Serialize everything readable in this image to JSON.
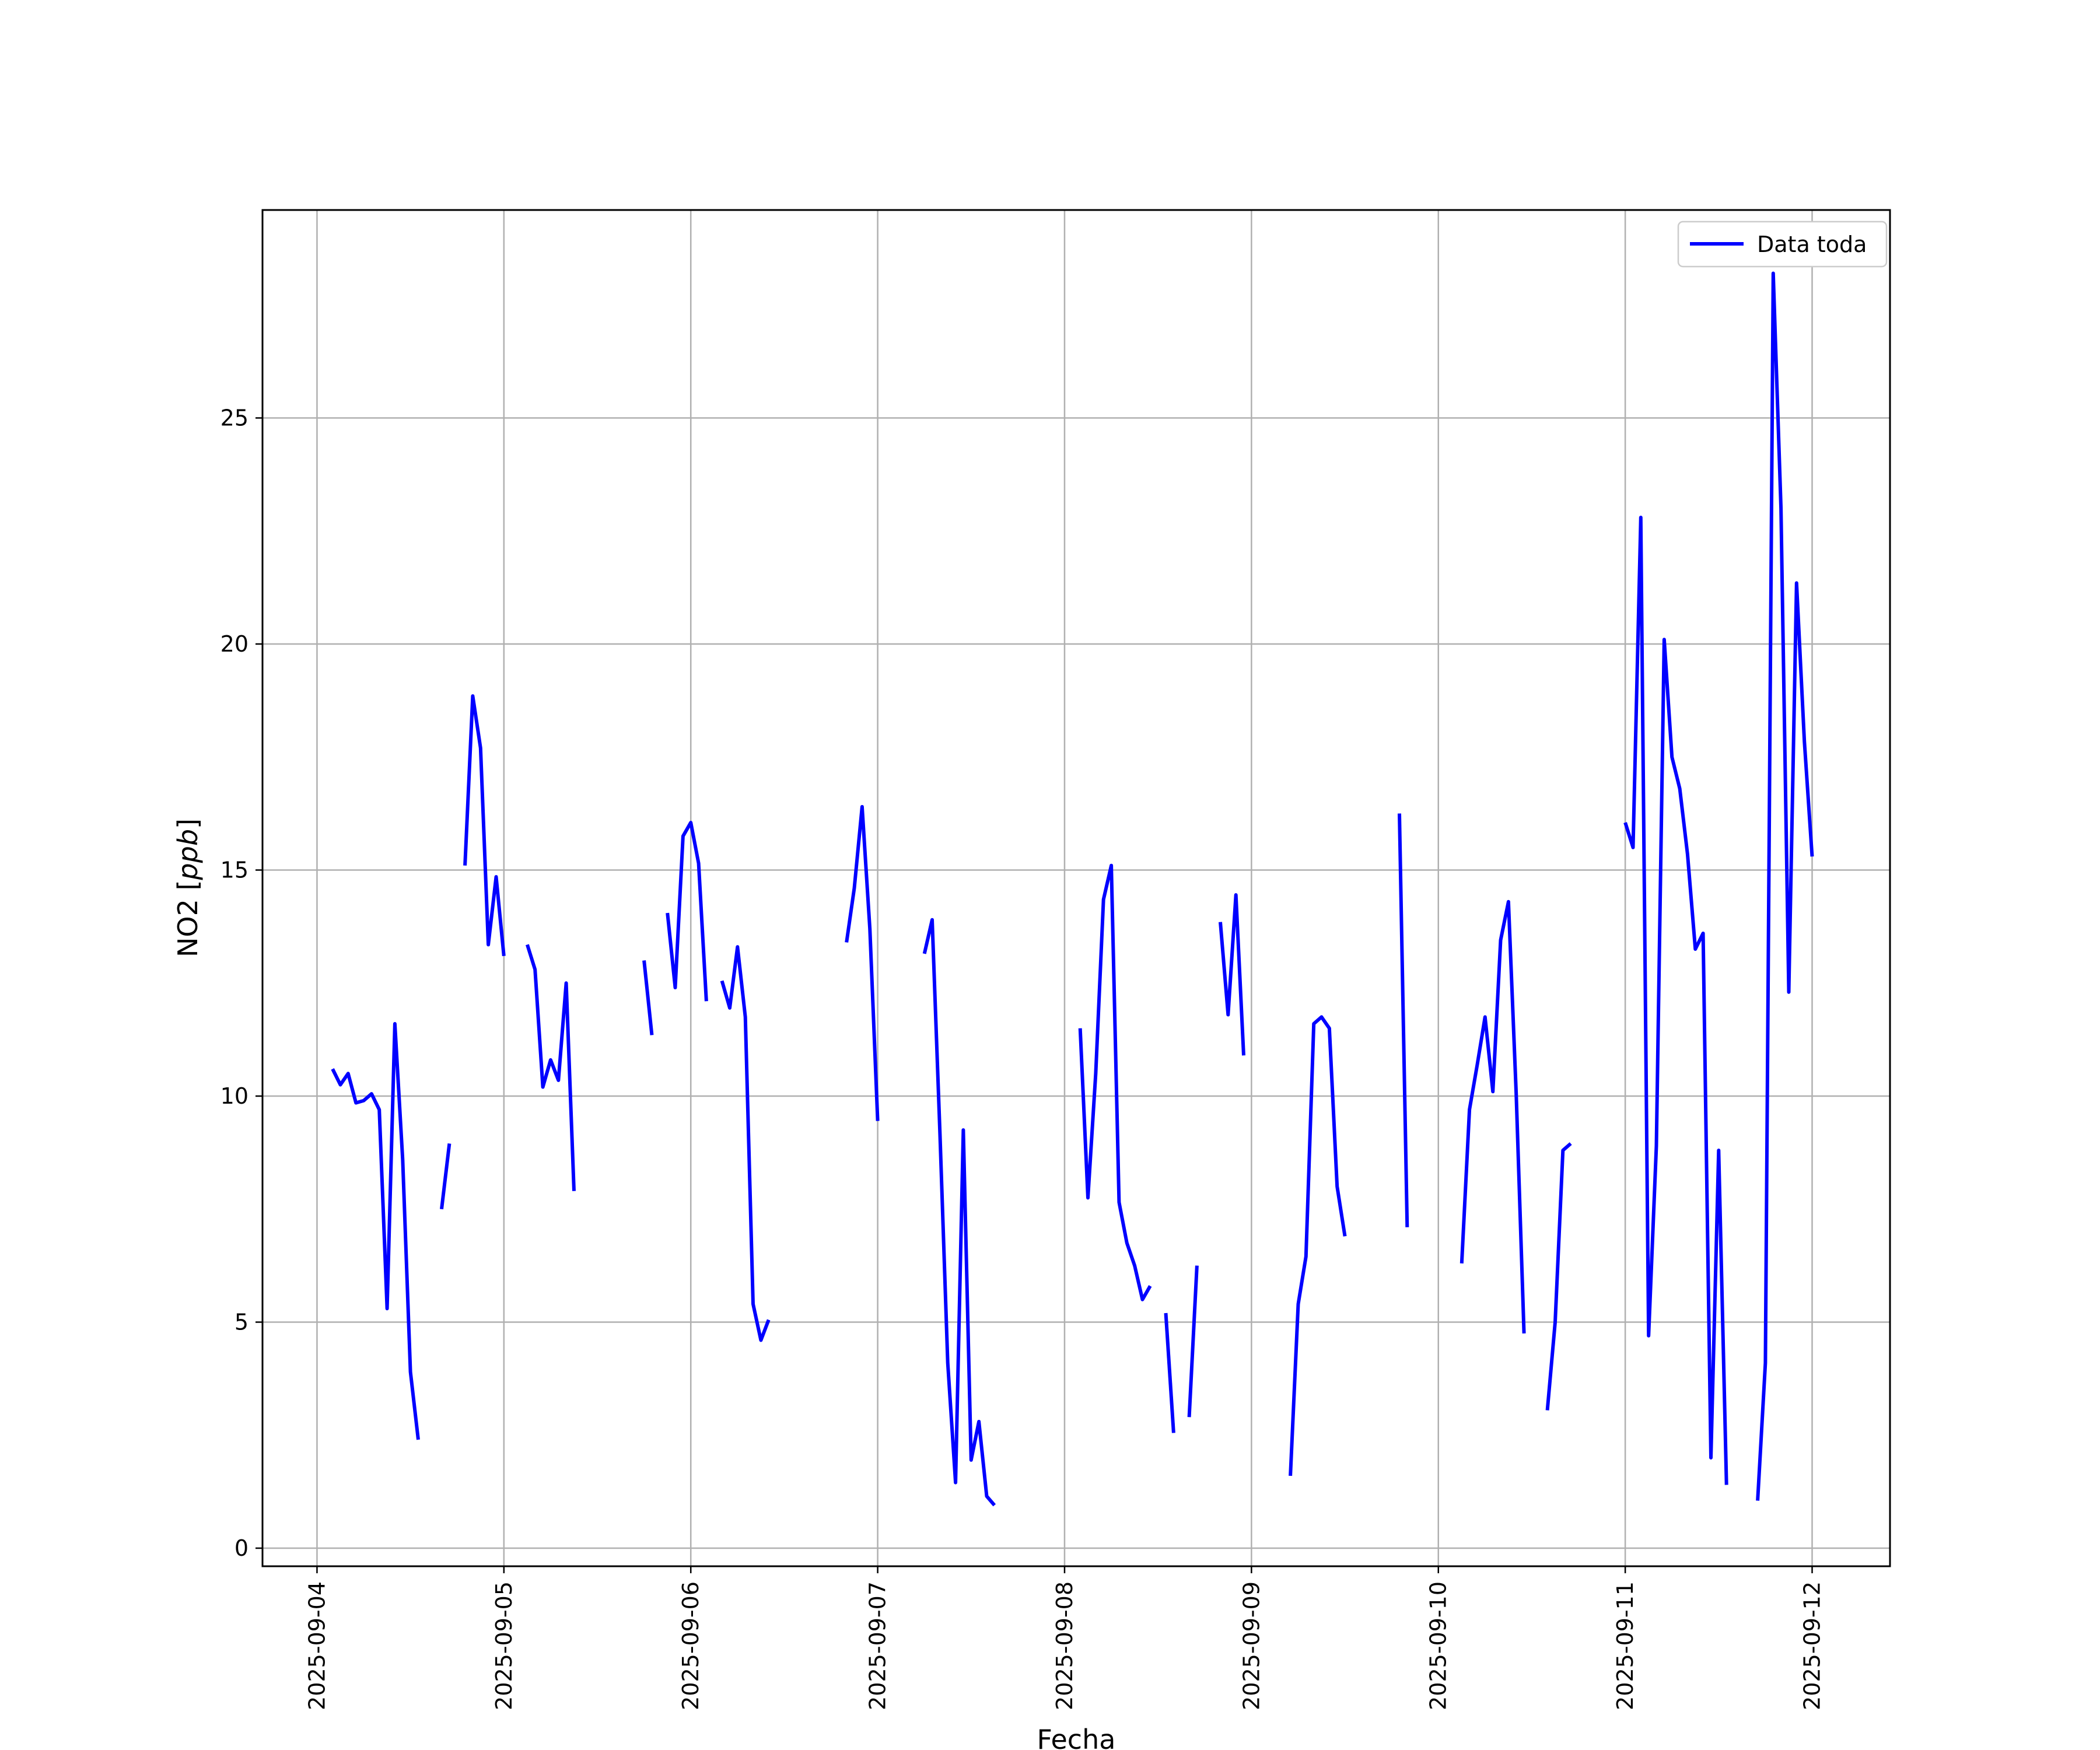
{
  "chart_data": {
    "type": "line",
    "xlabel": "Fecha",
    "ylabel": "NO2 [ppb]",
    "ylabel_parts": {
      "text": "NO2 [",
      "unit": "ppb",
      "close": "]"
    },
    "xlim": [
      "2025-09-03 17:00",
      "2025-09-12 10:00"
    ],
    "ylim": [
      -0.4,
      29.6
    ],
    "x_ticks": [
      "2025-09-04",
      "2025-09-05",
      "2025-09-06",
      "2025-09-07",
      "2025-09-08",
      "2025-09-09",
      "2025-09-10",
      "2025-09-11",
      "2025-09-12"
    ],
    "y_ticks": [
      0,
      5,
      10,
      15,
      20,
      25
    ],
    "y_tick_labels": [
      "0",
      "5",
      "10",
      "15",
      "20",
      "25"
    ],
    "grid": true,
    "legend": {
      "position": "top-right",
      "entries": [
        "Data toda"
      ]
    },
    "series": [
      {
        "name": "Data toda",
        "color": "#0000ff",
        "segments": [
          [
            [
              "2025-09-04 02:00",
              10.6
            ],
            [
              "2025-09-04 03:00",
              10.25
            ],
            [
              "2025-09-04 04:00",
              10.5
            ],
            [
              "2025-09-04 05:00",
              9.85
            ],
            [
              "2025-09-04 06:00",
              9.9
            ],
            [
              "2025-09-04 07:00",
              10.05
            ],
            [
              "2025-09-04 08:00",
              9.7
            ],
            [
              "2025-09-04 09:00",
              5.3
            ],
            [
              "2025-09-04 10:00",
              11.6
            ],
            [
              "2025-09-04 11:00",
              8.6
            ],
            [
              "2025-09-04 12:00",
              3.9
            ],
            [
              "2025-09-04 13:00",
              2.4
            ]
          ],
          [
            [
              "2025-09-04 16:00",
              7.5
            ],
            [
              "2025-09-04 17:00",
              8.95
            ]
          ],
          [
            [
              "2025-09-04 19:00",
              15.1
            ],
            [
              "2025-09-04 20:00",
              18.85
            ],
            [
              "2025-09-04 21:00",
              17.7
            ],
            [
              "2025-09-04 22:00",
              13.35
            ],
            [
              "2025-09-04 23:00",
              14.85
            ],
            [
              "2025-09-05 00:00",
              13.1
            ]
          ],
          [
            [
              "2025-09-05 03:00",
              13.35
            ],
            [
              "2025-09-05 04:00",
              12.8
            ],
            [
              "2025-09-05 05:00",
              10.2
            ],
            [
              "2025-09-05 06:00",
              10.8
            ],
            [
              "2025-09-05 07:00",
              10.35
            ],
            [
              "2025-09-05 08:00",
              12.5
            ],
            [
              "2025-09-05 09:00",
              7.9
            ]
          ],
          [
            [
              "2025-09-05 18:00",
              13.0
            ],
            [
              "2025-09-05 19:00",
              11.35
            ]
          ],
          [
            [
              "2025-09-05 21:00",
              14.05
            ],
            [
              "2025-09-05 22:00",
              12.4
            ],
            [
              "2025-09-05 23:00",
              15.75
            ],
            [
              "2025-09-06 00:00",
              16.05
            ],
            [
              "2025-09-06 01:00",
              15.15
            ],
            [
              "2025-09-06 02:00",
              12.1
            ]
          ],
          [
            [
              "2025-09-06 04:00",
              12.55
            ],
            [
              "2025-09-06 05:00",
              11.95
            ],
            [
              "2025-09-06 06:00",
              13.3
            ],
            [
              "2025-09-06 07:00",
              11.75
            ],
            [
              "2025-09-06 08:00",
              5.4
            ],
            [
              "2025-09-06 09:00",
              4.6
            ],
            [
              "2025-09-06 10:00",
              5.05
            ]
          ],
          [
            [
              "2025-09-06 20:00",
              13.4
            ],
            [
              "2025-09-06 21:00",
              14.6
            ],
            [
              "2025-09-06 22:00",
              16.4
            ],
            [
              "2025-09-06 23:00",
              13.7
            ],
            [
              "2025-09-07 00:00",
              9.45
            ]
          ],
          [
            [
              "2025-09-07 06:00",
              13.15
            ],
            [
              "2025-09-07 07:00",
              13.9
            ],
            [
              "2025-09-07 08:00",
              9.15
            ],
            [
              "2025-09-07 09:00",
              4.1
            ],
            [
              "2025-09-07 10:00",
              1.45
            ],
            [
              "2025-09-07 11:00",
              9.25
            ],
            [
              "2025-09-07 12:00",
              1.95
            ],
            [
              "2025-09-07 13:00",
              2.8
            ],
            [
              "2025-09-07 14:00",
              1.15
            ],
            [
              "2025-09-07 15:00",
              0.95
            ]
          ],
          [
            [
              "2025-09-08 02:00",
              11.5
            ],
            [
              "2025-09-08 03:00",
              7.75
            ],
            [
              "2025-09-08 04:00",
              10.5
            ],
            [
              "2025-09-08 05:00",
              14.35
            ],
            [
              "2025-09-08 06:00",
              15.1
            ],
            [
              "2025-09-08 07:00",
              7.65
            ],
            [
              "2025-09-08 08:00",
              6.75
            ],
            [
              "2025-09-08 09:00",
              6.25
            ],
            [
              "2025-09-08 10:00",
              5.5
            ],
            [
              "2025-09-08 11:00",
              5.8
            ]
          ],
          [
            [
              "2025-09-08 13:00",
              5.2
            ],
            [
              "2025-09-08 14:00",
              2.55
            ]
          ],
          [
            [
              "2025-09-08 16:00",
              2.9
            ],
            [
              "2025-09-08 17:00",
              6.25
            ]
          ],
          [
            [
              "2025-09-08 20:00",
              13.85
            ],
            [
              "2025-09-08 21:00",
              11.8
            ],
            [
              "2025-09-08 22:00",
              14.45
            ],
            [
              "2025-09-08 23:00",
              10.9
            ]
          ],
          [
            [
              "2025-09-09 05:00",
              1.6
            ],
            [
              "2025-09-09 06:00",
              5.4
            ],
            [
              "2025-09-09 07:00",
              6.45
            ],
            [
              "2025-09-09 08:00",
              11.6
            ],
            [
              "2025-09-09 09:00",
              11.75
            ],
            [
              "2025-09-09 10:00",
              11.5
            ],
            [
              "2025-09-09 11:00",
              8.0
            ],
            [
              "2025-09-09 12:00",
              6.9
            ]
          ],
          [
            [
              "2025-09-09 19:00",
              16.25
            ],
            [
              "2025-09-09 20:00",
              7.1
            ]
          ],
          [
            [
              "2025-09-10 03:00",
              6.3
            ],
            [
              "2025-09-10 04:00",
              9.7
            ],
            [
              "2025-09-10 05:00",
              10.7
            ],
            [
              "2025-09-10 06:00",
              11.75
            ],
            [
              "2025-09-10 07:00",
              10.1
            ],
            [
              "2025-09-10 08:00",
              13.45
            ],
            [
              "2025-09-10 09:00",
              14.3
            ],
            [
              "2025-09-10 10:00",
              10.05
            ],
            [
              "2025-09-10 11:00",
              4.75
            ]
          ],
          [
            [
              "2025-09-10 14:00",
              3.05
            ],
            [
              "2025-09-10 15:00",
              5.0
            ],
            [
              "2025-09-10 16:00",
              8.8
            ],
            [
              "2025-09-10 17:00",
              8.95
            ]
          ],
          [
            [
              "2025-09-11 00:00",
              16.05
            ],
            [
              "2025-09-11 01:00",
              15.5
            ],
            [
              "2025-09-11 02:00",
              22.8
            ],
            [
              "2025-09-11 03:00",
              4.7
            ],
            [
              "2025-09-11 04:00",
              8.9
            ],
            [
              "2025-09-11 05:00",
              20.1
            ],
            [
              "2025-09-11 06:00",
              17.5
            ],
            [
              "2025-09-11 07:00",
              16.8
            ],
            [
              "2025-09-11 08:00",
              15.35
            ],
            [
              "2025-09-11 09:00",
              13.25
            ],
            [
              "2025-09-11 10:00",
              13.6
            ],
            [
              "2025-09-11 11:00",
              2.0
            ],
            [
              "2025-09-11 12:00",
              8.8
            ],
            [
              "2025-09-11 13:00",
              1.4
            ]
          ],
          [
            [
              "2025-09-11 17:00",
              1.05
            ],
            [
              "2025-09-11 18:00",
              4.1
            ],
            [
              "2025-09-11 19:00",
              28.2
            ],
            [
              "2025-09-11 20:00",
              23.0
            ],
            [
              "2025-09-11 21:00",
              12.3
            ],
            [
              "2025-09-11 22:00",
              21.35
            ],
            [
              "2025-09-11 23:00",
              17.85
            ],
            [
              "2025-09-12 00:00",
              15.3
            ]
          ]
        ]
      }
    ]
  }
}
